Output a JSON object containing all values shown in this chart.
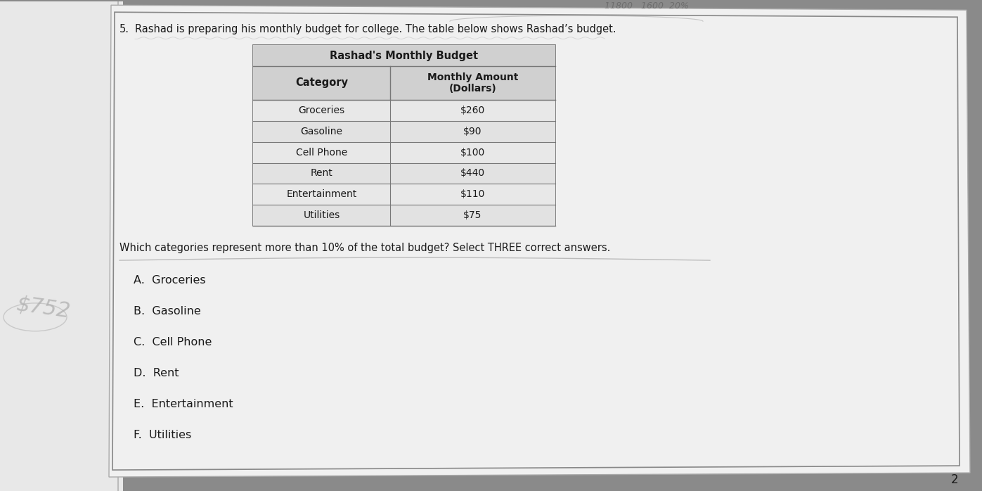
{
  "question_number": "5.",
  "question_text": "Rashad is preparing his monthly budget for college. The table below shows Rashad’s budget.",
  "table_title": "Rashad's Monthly Budget",
  "col_headers": [
    "Category",
    "Monthly Amount\n(Dollars)"
  ],
  "rows": [
    [
      "Groceries",
      "$260"
    ],
    [
      "Gasoline",
      "$90"
    ],
    [
      "Cell Phone",
      "$100"
    ],
    [
      "Rent",
      "$440"
    ],
    [
      "Entertainment",
      "$110"
    ],
    [
      "Utilities",
      "$75"
    ]
  ],
  "question2": "Which categories represent more than 10% of the total budget? Select THREE correct answers.",
  "choices": [
    "A.  Groceries",
    "B.  Gasoline",
    "C.  Cell Phone",
    "D.  Rent",
    "E.  Entertainment",
    "F.  Utilities"
  ],
  "page_number": "2",
  "outer_bg": "#8a8a8a",
  "paper_color": "#f0f0f0",
  "left_paper_color": "#f5f5f5",
  "table_bg": "#e8e8e8",
  "header_bg": "#d0d0d0",
  "border_color": "#777777",
  "text_color": "#1a1a1a",
  "handwriting_color": "#555555"
}
